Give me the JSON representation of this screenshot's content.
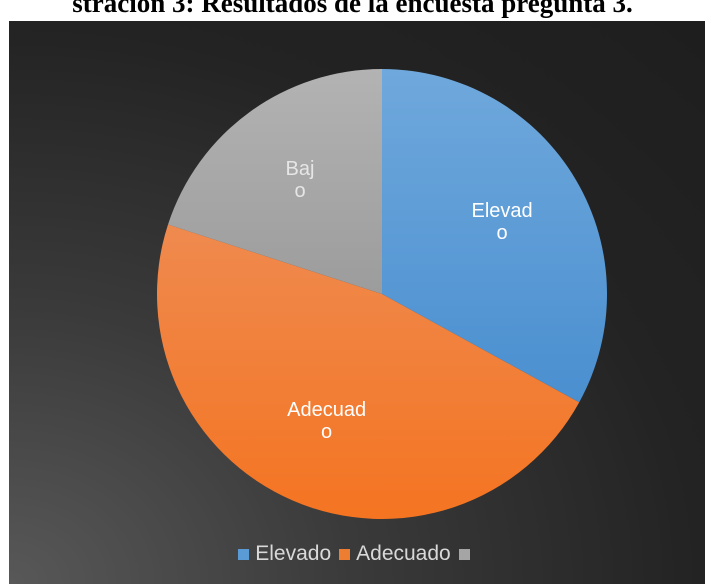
{
  "caption": "stración 3: Resultados de la encuesta pregunta 3.",
  "chart_data": {
    "type": "pie",
    "title": "",
    "start": "top",
    "direction": "clockwise",
    "legend_position": "bottom",
    "slices": [
      {
        "name": "Elevado",
        "value": 33,
        "label_lines": [
          "Elevad",
          "o"
        ],
        "color": "#5b9bd5",
        "label_color": "#ffffff"
      },
      {
        "name": "Adecuado",
        "value": 47,
        "label_lines": [
          "Adecuad",
          "o"
        ],
        "color": "#ed7d31",
        "label_color": "#ffffff"
      },
      {
        "name": "Bajo",
        "value": 20,
        "label_lines": [
          "Baj",
          "o"
        ],
        "color": "#a5a5a5",
        "label_color": "#e6e6e6"
      }
    ],
    "legend": [
      {
        "label": "Elevado",
        "color": "#5b9bd5"
      },
      {
        "label": "Adecuado",
        "color": "#ed7d31"
      },
      {
        "label": "",
        "color": "#a5a5a5"
      }
    ]
  }
}
